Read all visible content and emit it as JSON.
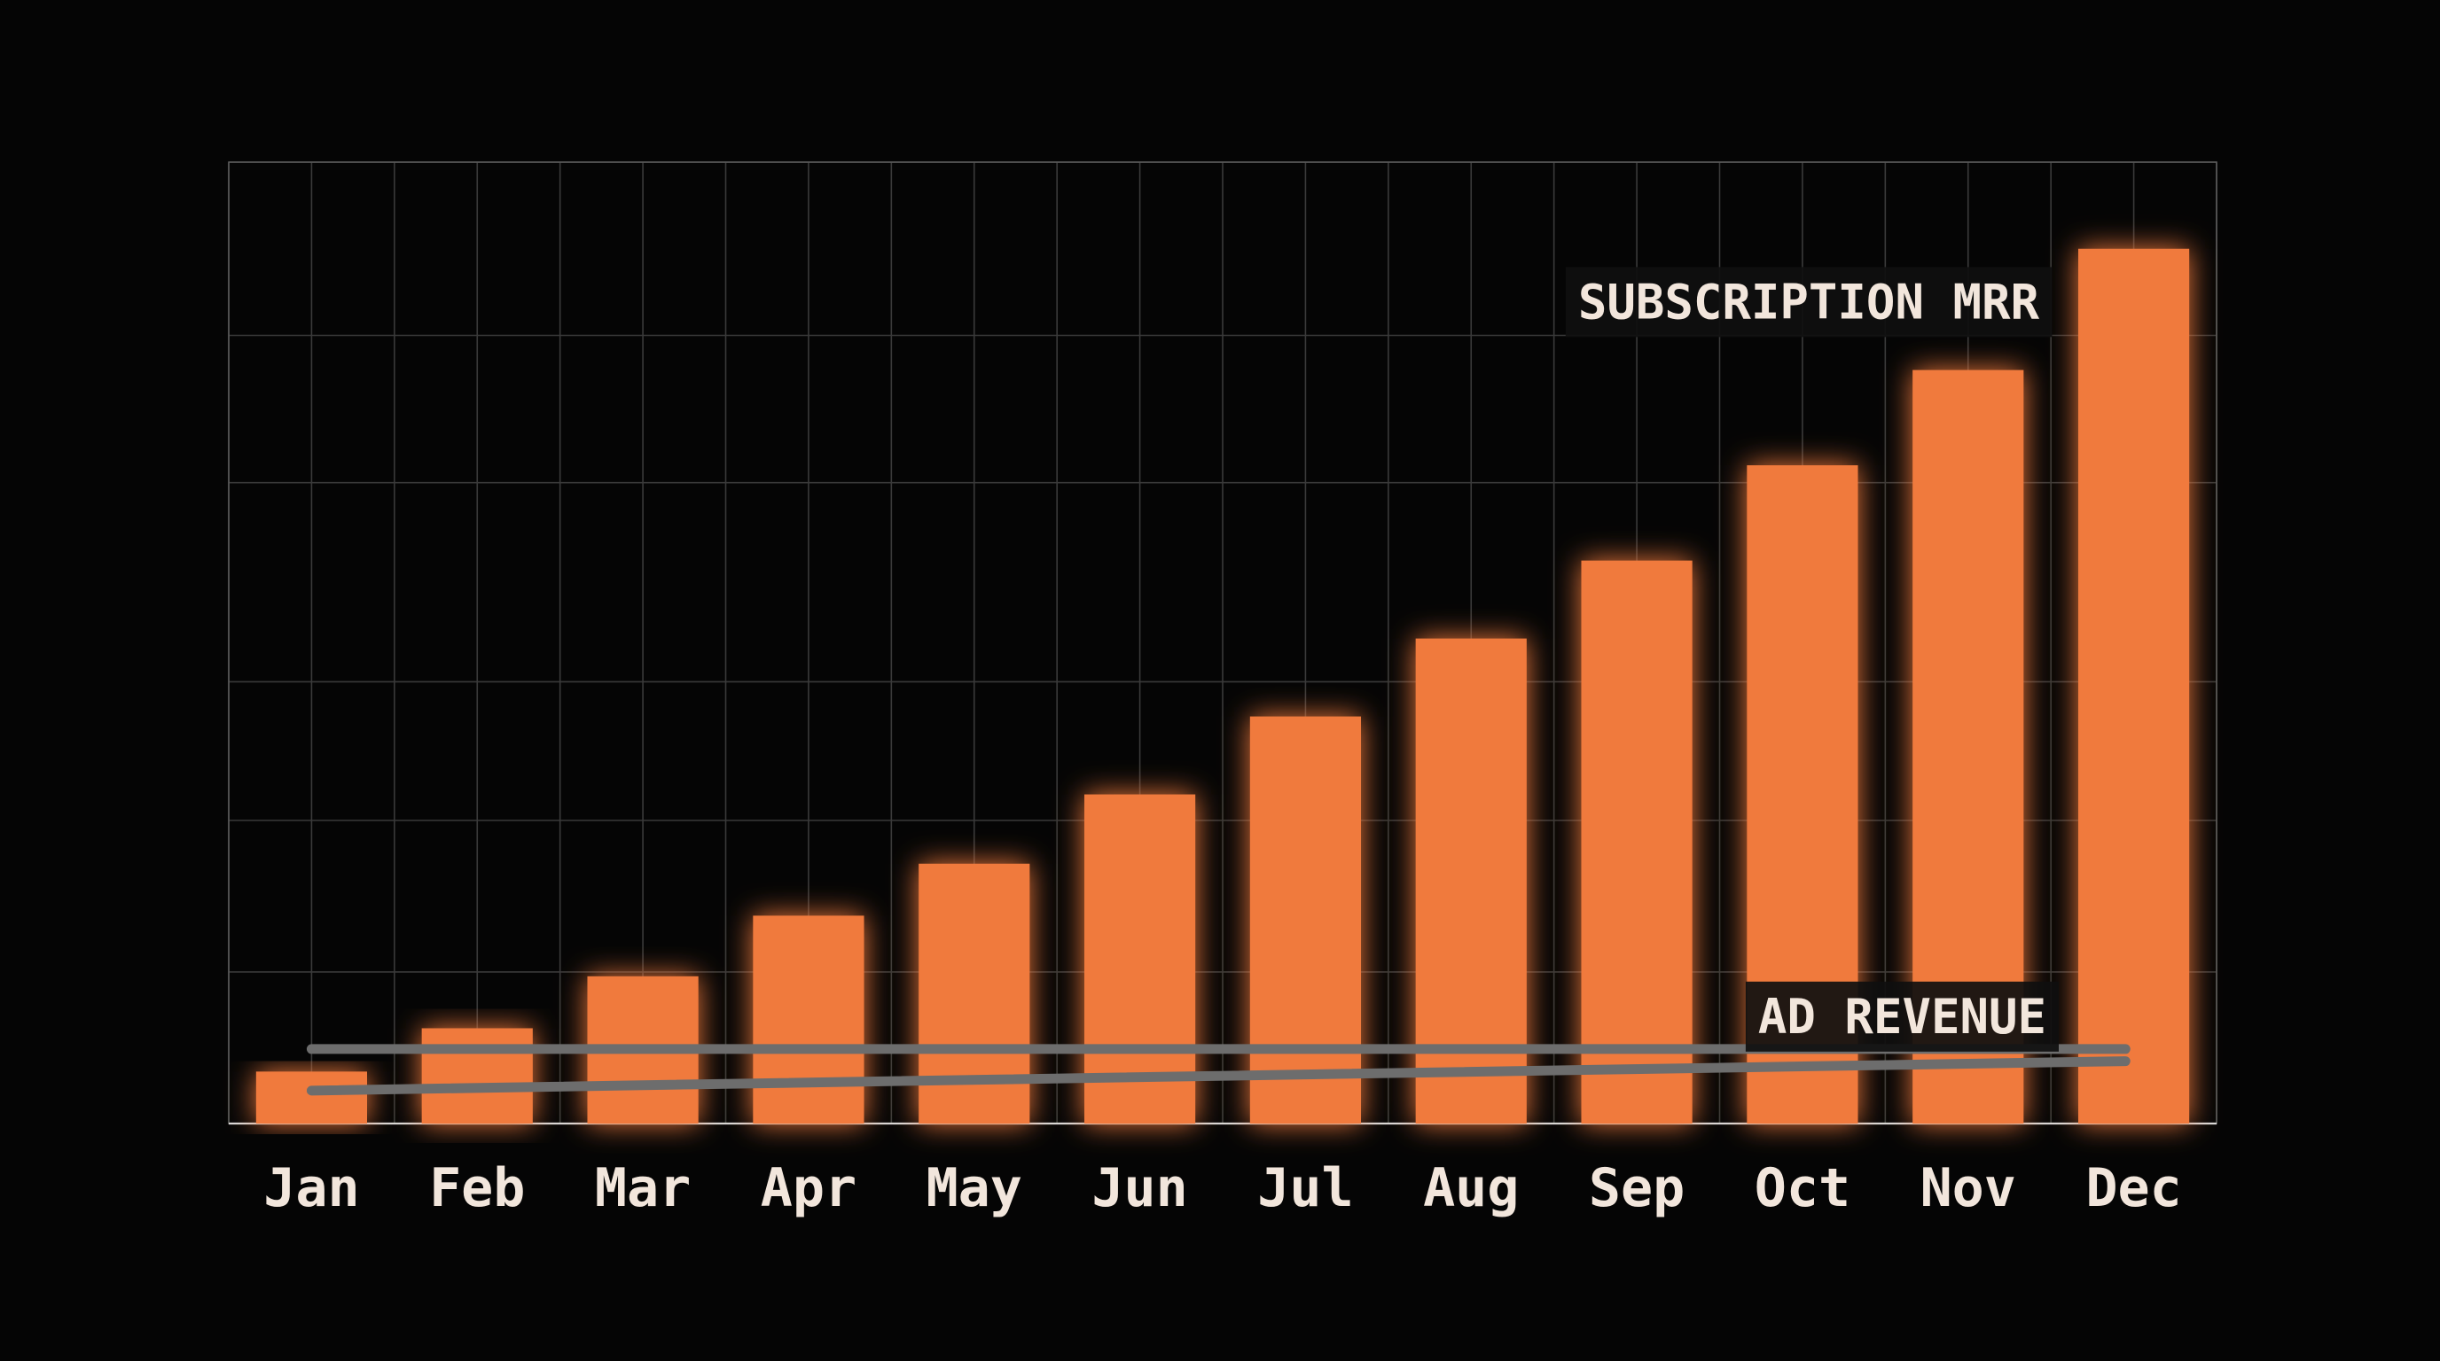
{
  "chart_data": {
    "type": "bar",
    "title": "",
    "xlabel": "",
    "ylabel": "",
    "categories": [
      "Jan",
      "Feb",
      "Mar",
      "Apr",
      "May",
      "Jun",
      "Jul",
      "Aug",
      "Sep",
      "Oct",
      "Nov",
      "Dec"
    ],
    "series": [
      {
        "name": "SUBSCRIPTION MRR",
        "type": "bar",
        "color": "#f07a3c",
        "values": [
          6,
          11,
          17,
          24,
          30,
          38,
          47,
          56,
          65,
          76,
          87,
          101
        ]
      },
      {
        "name": "AD REVENUE",
        "type": "line",
        "color": "#6d6d6d",
        "lines": [
          {
            "from": {
              "x": "Jan",
              "y": 8.6
            },
            "to": {
              "x": "Dec",
              "y": 8.6
            }
          },
          {
            "from": {
              "x": "Jan",
              "y": 3.8
            },
            "to": {
              "x": "Dec",
              "y": 7.2
            }
          }
        ]
      }
    ],
    "ylim": [
      0,
      111
    ],
    "grid": true,
    "y_gridlines": [
      0,
      17.5,
      35,
      51,
      74,
      91,
      111
    ]
  }
}
